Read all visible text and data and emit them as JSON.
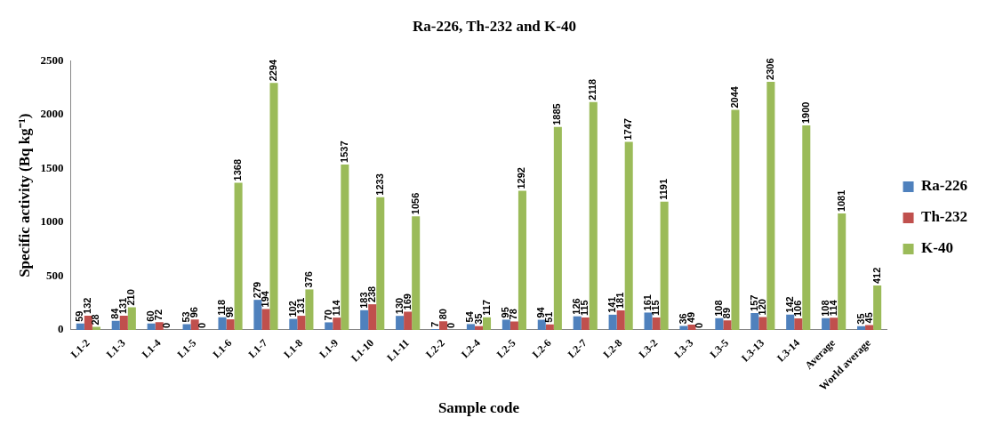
{
  "chart_data": {
    "type": "bar",
    "title": "Ra-226, Th-232 and K-40",
    "xlabel": "Sample code",
    "ylabel": "Specific activity (Bq kg⁻¹)",
    "categories": [
      "L1-2",
      "L1-3",
      "L1-4",
      "L1-5",
      "L1-6",
      "L1-7",
      "L1-8",
      "L1-9",
      "L1-10",
      "L1-11",
      "L2-2",
      "L2-4",
      "L2-5",
      "L2-6",
      "L2-7",
      "L2-8",
      "L3-2",
      "L3-3",
      "L3-5",
      "L3-13",
      "L3-14",
      "Average",
      "World average"
    ],
    "series": [
      {
        "name": "Ra-226",
        "color": "#4f81bd",
        "values": [
          59,
          84,
          60,
          53,
          118,
          279,
          102,
          70,
          183,
          130,
          7,
          54,
          95,
          94,
          126,
          141,
          161,
          36,
          108,
          157,
          142,
          108,
          35
        ]
      },
      {
        "name": "Th-232",
        "color": "#c0504d",
        "values": [
          132,
          131,
          72,
          96,
          98,
          194,
          131,
          114,
          238,
          169,
          80,
          35,
          78,
          51,
          115,
          181,
          115,
          49,
          89,
          120,
          106,
          114,
          45
        ]
      },
      {
        "name": "K-40",
        "color": "#9bbb59",
        "values": [
          28,
          210,
          0,
          0,
          1368,
          2294,
          376,
          1537,
          1233,
          1056,
          0,
          117,
          1292,
          1885,
          2118,
          1747,
          1191,
          0,
          2044,
          2306,
          1900,
          1081,
          412
        ]
      }
    ],
    "ylim": [
      0,
      2500
    ],
    "yticks": [
      0,
      500,
      1000,
      1500,
      2000,
      2500
    ],
    "grid": false,
    "legend": "right",
    "data_labels": true
  }
}
